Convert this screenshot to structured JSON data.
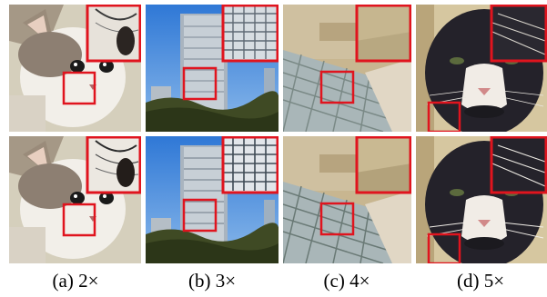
{
  "figure": {
    "columns": [
      {
        "id": "a",
        "caption": "(a) 2×",
        "subject": "kitten"
      },
      {
        "id": "b",
        "caption": "(b) 3×",
        "subject": "skyscraper"
      },
      {
        "id": "c",
        "caption": "(c) 4×",
        "subject": "bed"
      },
      {
        "id": "d",
        "caption": "(d) 5×",
        "subject": "cat"
      }
    ],
    "rows": 2,
    "highlight_color": "#e0141e"
  }
}
